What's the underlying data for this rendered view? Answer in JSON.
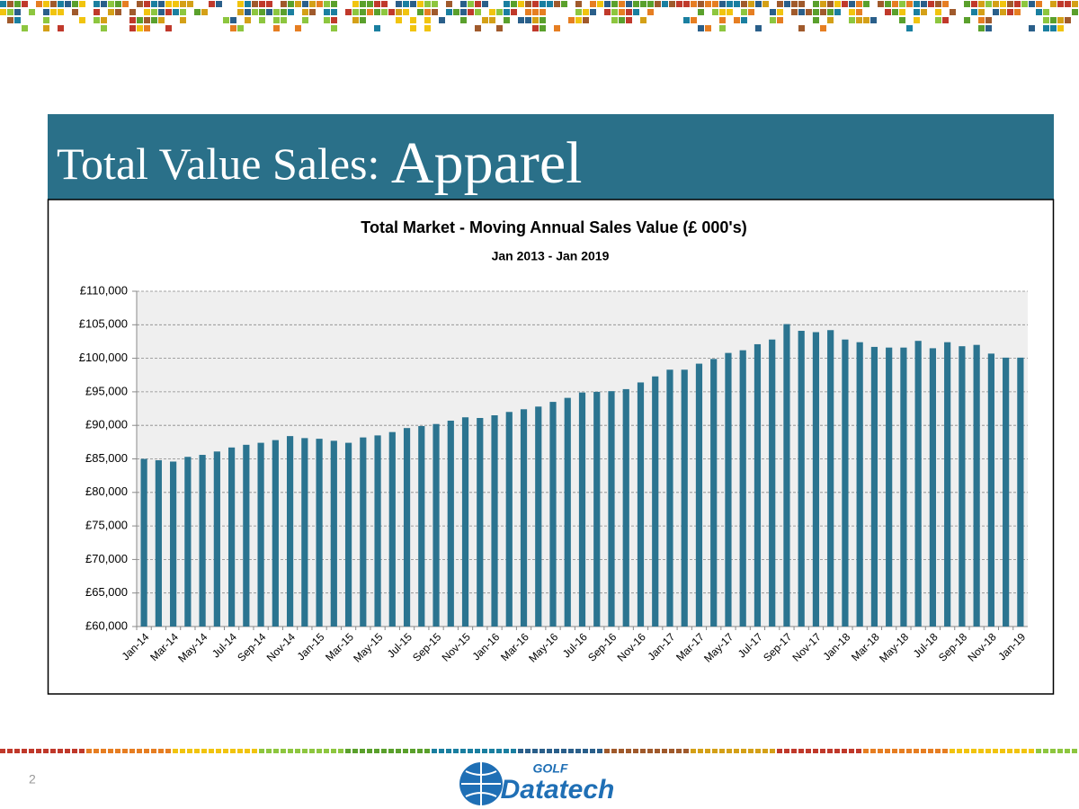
{
  "slide": {
    "title": "Total Value Sales:",
    "title_emphasis": "Apparel",
    "page_number": "2",
    "logo": {
      "top": "GOLF",
      "main": "Datatech"
    }
  },
  "chart_data": {
    "type": "bar",
    "title": "Total Market - Moving Annual Sales Value (£ 000's)",
    "subtitle": "Jan 2013 - Jan 2019",
    "color": "#2b7490",
    "grid": true,
    "categories": [
      "Jan-14",
      null,
      "Mar-14",
      null,
      "May-14",
      null,
      "Jul-14",
      null,
      "Sep-14",
      null,
      "Nov-14",
      null,
      "Jan-15",
      null,
      "Mar-15",
      null,
      "May-15",
      null,
      "Jul-15",
      null,
      "Sep-15",
      null,
      "Nov-15",
      null,
      "Jan-16",
      null,
      "Mar-16",
      null,
      "May-16",
      null,
      "Jul-16",
      null,
      "Sep-16",
      null,
      "Nov-16",
      null,
      "Jan-17",
      null,
      "Mar-17",
      null,
      "May-17",
      null,
      "Jul-17",
      null,
      "Sep-17",
      null,
      "Nov-17",
      null,
      "Jan-18",
      null,
      "Mar-18",
      null,
      "May-18",
      null,
      "Jul-18",
      null,
      "Sep-18",
      null,
      "Nov-18",
      null,
      "Jan-19"
    ],
    "values": [
      85000,
      84800,
      84600,
      85300,
      85600,
      86100,
      86700,
      87100,
      87400,
      87800,
      88400,
      88100,
      88000,
      87700,
      87400,
      88200,
      88500,
      89000,
      89600,
      89900,
      90200,
      90700,
      91200,
      91100,
      91500,
      92000,
      92400,
      92800,
      93500,
      94100,
      94900,
      95000,
      95100,
      95400,
      96400,
      97300,
      98300,
      98300,
      99200,
      99900,
      100800,
      101200,
      102100,
      102800,
      105100,
      104100,
      103900,
      104200,
      102800,
      102400,
      101700,
      101600,
      101600,
      102600,
      101500,
      102400,
      101800,
      102000,
      100700,
      100100,
      100100
    ],
    "ylim": [
      60000,
      110000
    ],
    "yticks": [
      {
        "value": 60000,
        "label": "£60,000"
      },
      {
        "value": 65000,
        "label": "£65,000"
      },
      {
        "value": 70000,
        "label": "£70,000"
      },
      {
        "value": 75000,
        "label": "£75,000"
      },
      {
        "value": 80000,
        "label": "£80,000"
      },
      {
        "value": 85000,
        "label": "£85,000"
      },
      {
        "value": 90000,
        "label": "£90,000"
      },
      {
        "value": 95000,
        "label": "£95,000"
      },
      {
        "value": 100000,
        "label": "£100,000"
      },
      {
        "value": 105000,
        "label": "£105,000"
      },
      {
        "value": 110000,
        "label": "£110,000"
      }
    ]
  }
}
